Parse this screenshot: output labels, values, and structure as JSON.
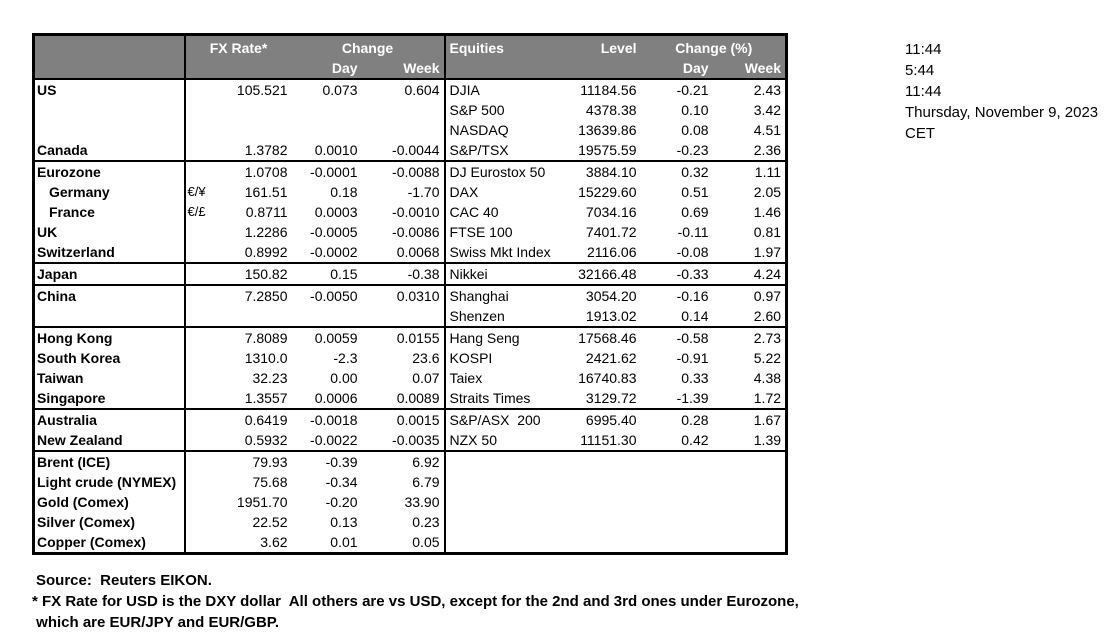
{
  "colors": {
    "header_bg": "#808080",
    "header_text": "#ffffff",
    "border": "#000000",
    "page_bg": "#ffffff"
  },
  "times": [
    "11:44",
    "5:44",
    "11:44",
    "Thursday, November 9, 2023",
    "CET"
  ],
  "table": {
    "header": {
      "fx_rate": "FX Rate*",
      "change": "Change",
      "change_day": "Day",
      "change_week": "Week",
      "equities": "Equities",
      "level": "Level",
      "change_pct": "Change (%)",
      "pct_day": "Day",
      "pct_week": "Week"
    },
    "rows": [
      {
        "label": "US",
        "pair": "",
        "rate": "105.521",
        "day": "0.073",
        "week": "0.604",
        "eq": "DJIA",
        "level": "11184.56",
        "eq_day": "-0.21",
        "eq_week": "2.43",
        "indent": false,
        "group_end": false
      },
      {
        "label": "",
        "pair": "",
        "rate": "",
        "day": "",
        "week": "",
        "eq": "S&P 500",
        "level": "4378.38",
        "eq_day": "0.10",
        "eq_week": "3.42",
        "indent": false,
        "group_end": false
      },
      {
        "label": "",
        "pair": "",
        "rate": "",
        "day": "",
        "week": "",
        "eq": "NASDAQ",
        "level": "13639.86",
        "eq_day": "0.08",
        "eq_week": "4.51",
        "indent": false,
        "group_end": false
      },
      {
        "label": "Canada",
        "pair": "",
        "rate": "1.3782",
        "day": "0.0010",
        "week": "-0.0044",
        "eq": "S&P/TSX",
        "level": "19575.59",
        "eq_day": "-0.23",
        "eq_week": "2.36",
        "indent": false,
        "group_end": true
      },
      {
        "label": "Eurozone",
        "pair": "",
        "rate": "1.0708",
        "day": "-0.0001",
        "week": "-0.0088",
        "eq": "DJ Eurostox 50",
        "level": "3884.10",
        "eq_day": "0.32",
        "eq_week": "1.11",
        "indent": false,
        "group_end": false
      },
      {
        "label": "Germany",
        "pair": "€/¥",
        "rate": "161.51",
        "day": "0.18",
        "week": "-1.70",
        "eq": "DAX",
        "level": "15229.60",
        "eq_day": "0.51",
        "eq_week": "2.05",
        "indent": true,
        "group_end": false
      },
      {
        "label": "France",
        "pair": "€/£",
        "rate": "0.8711",
        "day": "0.0003",
        "week": "-0.0010",
        "eq": "CAC 40",
        "level": "7034.16",
        "eq_day": "0.69",
        "eq_week": "1.46",
        "indent": true,
        "group_end": false
      },
      {
        "label": "UK",
        "pair": "",
        "rate": "1.2286",
        "day": "-0.0005",
        "week": "-0.0086",
        "eq": "FTSE 100",
        "level": "7401.72",
        "eq_day": "-0.11",
        "eq_week": "0.81",
        "indent": false,
        "group_end": false
      },
      {
        "label": "Switzerland",
        "pair": "",
        "rate": "0.8992",
        "day": "-0.0002",
        "week": "0.0068",
        "eq": "Swiss Mkt Index",
        "level": "2116.06",
        "eq_day": "-0.08",
        "eq_week": "1.97",
        "indent": false,
        "group_end": true
      },
      {
        "label": "Japan",
        "pair": "",
        "rate": "150.82",
        "day": "0.15",
        "week": "-0.38",
        "eq": "Nikkei",
        "level": "32166.48",
        "eq_day": "-0.33",
        "eq_week": "4.24",
        "indent": false,
        "group_end": true
      },
      {
        "label": "China",
        "pair": "",
        "rate": "7.2850",
        "day": "-0.0050",
        "week": "0.0310",
        "eq": "Shanghai",
        "level": "3054.20",
        "eq_day": "-0.16",
        "eq_week": "0.97",
        "indent": false,
        "group_end": false
      },
      {
        "label": "",
        "pair": "",
        "rate": "",
        "day": "",
        "week": "",
        "eq": "Shenzen",
        "level": "1913.02",
        "eq_day": "0.14",
        "eq_week": "2.60",
        "indent": false,
        "group_end": true
      },
      {
        "label": "Hong Kong",
        "pair": "",
        "rate": "7.8089",
        "day": "0.0059",
        "week": "0.0155",
        "eq": "Hang Seng",
        "level": "17568.46",
        "eq_day": "-0.58",
        "eq_week": "2.73",
        "indent": false,
        "group_end": false
      },
      {
        "label": "South Korea",
        "pair": "",
        "rate": "1310.0",
        "day": "-2.3",
        "week": "23.6",
        "eq": "KOSPI",
        "level": "2421.62",
        "eq_day": "-0.91",
        "eq_week": "5.22",
        "indent": false,
        "group_end": false
      },
      {
        "label": "Taiwan",
        "pair": "",
        "rate": "32.23",
        "day": "0.00",
        "week": "0.07",
        "eq": "Taiex",
        "level": "16740.83",
        "eq_day": "0.33",
        "eq_week": "4.38",
        "indent": false,
        "group_end": false
      },
      {
        "label": "Singapore",
        "pair": "",
        "rate": "1.3557",
        "day": "0.0006",
        "week": "0.0089",
        "eq": "Straits Times",
        "level": "3129.72",
        "eq_day": "-1.39",
        "eq_week": "1.72",
        "indent": false,
        "group_end": true
      },
      {
        "label": "Australia",
        "pair": "",
        "rate": "0.6419",
        "day": "-0.0018",
        "week": "0.0015",
        "eq": "S&P/ASX  200",
        "level": "6995.40",
        "eq_day": "0.28",
        "eq_week": "1.67",
        "indent": false,
        "group_end": false
      },
      {
        "label": "New Zealand",
        "pair": "",
        "rate": "0.5932",
        "day": "-0.0022",
        "week": "-0.0035",
        "eq": "NZX 50",
        "level": "11151.30",
        "eq_day": "0.42",
        "eq_week": "1.39",
        "indent": false,
        "group_end": true
      },
      {
        "label": "Brent (ICE)",
        "pair": "",
        "rate": "79.93",
        "day": "-0.39",
        "week": "6.92",
        "eq": "",
        "level": "",
        "eq_day": "",
        "eq_week": "",
        "indent": false,
        "group_end": false
      },
      {
        "label": "Light crude (NYMEX)",
        "pair": "",
        "rate": "75.68",
        "day": "-0.34",
        "week": "6.79",
        "eq": "",
        "level": "",
        "eq_day": "",
        "eq_week": "",
        "indent": false,
        "group_end": false
      },
      {
        "label": "Gold (Comex)",
        "pair": "",
        "rate": "1951.70",
        "day": "-0.20",
        "week": "33.90",
        "eq": "",
        "level": "",
        "eq_day": "",
        "eq_week": "",
        "indent": false,
        "group_end": false
      },
      {
        "label": "Silver (Comex)",
        "pair": "",
        "rate": "22.52",
        "day": "0.13",
        "week": "0.23",
        "eq": "",
        "level": "",
        "eq_day": "",
        "eq_week": "",
        "indent": false,
        "group_end": false
      },
      {
        "label": "Copper (Comex)",
        "pair": "",
        "rate": "3.62",
        "day": "0.01",
        "week": "0.05",
        "eq": "",
        "level": "",
        "eq_day": "",
        "eq_week": "",
        "indent": false,
        "group_end": false
      }
    ]
  },
  "footer": {
    "source": "Source:  Reuters EIKON.",
    "note1": "* FX Rate for USD is the DXY dollar  All others are vs USD, except for the 2nd and 3rd ones under Eurozone,",
    "note2": " which are EUR/JPY and EUR/GBP."
  }
}
